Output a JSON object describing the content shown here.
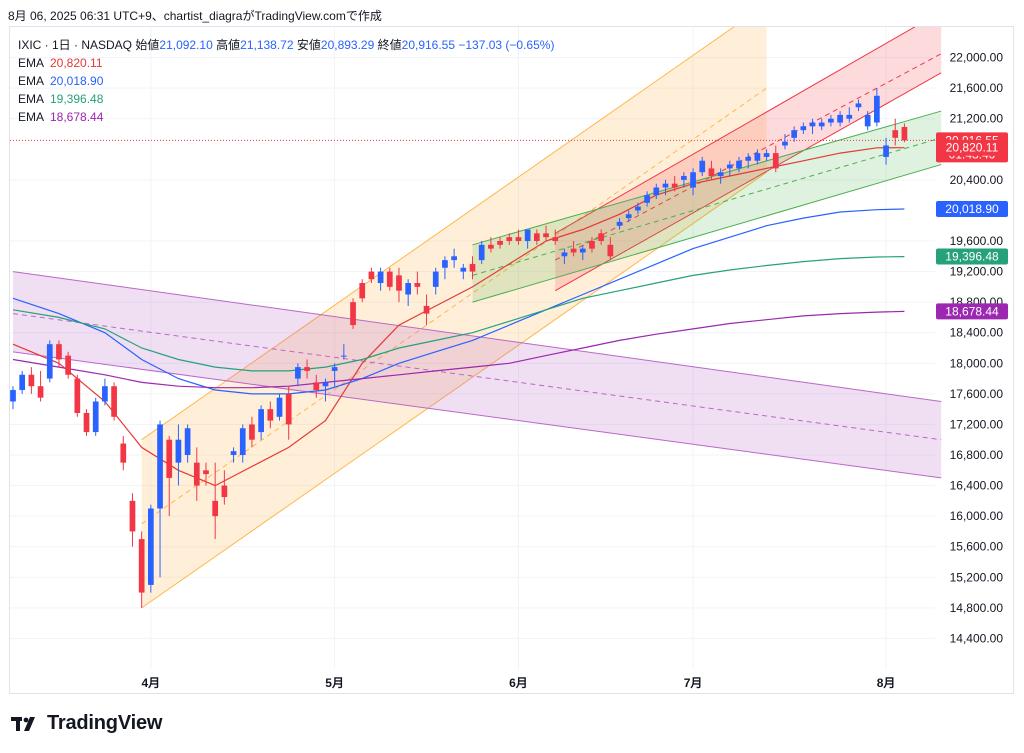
{
  "header": {
    "caption": "8月 06, 2025 06:31 UTC+9、chartist_diagraがTradingView.comで作成"
  },
  "legend": {
    "symbol": "IXIC · 1日 · NASDAQ",
    "open_label": "始値",
    "open": "21,092.10",
    "high_label": "高値",
    "high": "21,138.72",
    "low_label": "安値",
    "low": "20,893.29",
    "close_label": "終値",
    "close": "20,916.55",
    "change": "−137.03 (−0.65%)",
    "emas": [
      {
        "label": "EMA",
        "value": "20,820.11",
        "color": "#e53935"
      },
      {
        "label": "EMA",
        "value": "20,018.90",
        "color": "#2962ff"
      },
      {
        "label": "EMA",
        "value": "19,396.48",
        "color": "#26a17b"
      },
      {
        "label": "EMA",
        "value": "18,678.44",
        "color": "#9c27b0"
      }
    ]
  },
  "price_tags": [
    {
      "text": "20,916.55",
      "sub": "01:43:40",
      "value": 20916.55,
      "color": "#f23645"
    },
    {
      "text": "20,820.11",
      "value": 20820.11,
      "color": "#f23645"
    },
    {
      "text": "20,018.90",
      "value": 20018.9,
      "color": "#2962ff"
    },
    {
      "text": "19,396.48",
      "value": 19396.48,
      "color": "#26a17b"
    },
    {
      "text": "18,678.44",
      "value": 18678.44,
      "color": "#9c27b0"
    }
  ],
  "footer": {
    "brand": "TradingView"
  },
  "colors": {
    "up": "#2962ff",
    "down": "#f23645"
  },
  "chart_data": {
    "type": "candlestick",
    "ylim": [
      14000,
      22400
    ],
    "y_ticks": [
      14400,
      14800,
      15200,
      15600,
      16000,
      16400,
      16800,
      17200,
      17600,
      18000,
      18400,
      18800,
      19200,
      19600,
      20400,
      21200,
      21600,
      22000
    ],
    "y_tick_labels": [
      "14,400.00",
      "14,800.00",
      "15,200.00",
      "15,600.00",
      "16,000.00",
      "16,400.00",
      "16,800.00",
      "17,200.00",
      "17,600.00",
      "18,000.00",
      "18,400.00",
      "18,800.00",
      "19,200.00",
      "19,600.00",
      "20,400.00",
      "21,200.00",
      "21,600.00",
      "22,000.00"
    ],
    "x_labels": [
      {
        "label": "4月",
        "i": 15
      },
      {
        "label": "5月",
        "i": 35
      },
      {
        "label": "6月",
        "i": 55
      },
      {
        "label": "7月",
        "i": 74
      },
      {
        "label": "8月",
        "i": 95
      }
    ],
    "n_bars": 101,
    "candles": [
      [
        0,
        17500,
        17700,
        17400,
        17650
      ],
      [
        1,
        17650,
        17900,
        17600,
        17850
      ],
      [
        2,
        17850,
        17950,
        17600,
        17700
      ],
      [
        3,
        17700,
        17900,
        17500,
        17550
      ],
      [
        4,
        17800,
        18300,
        17750,
        18250
      ],
      [
        5,
        18250,
        18300,
        17950,
        18050
      ],
      [
        6,
        18100,
        18150,
        17800,
        17850
      ],
      [
        7,
        17800,
        17850,
        17300,
        17350
      ],
      [
        8,
        17350,
        17400,
        17050,
        17100
      ],
      [
        9,
        17100,
        17550,
        17050,
        17500
      ],
      [
        10,
        17500,
        17800,
        17450,
        17700
      ],
      [
        11,
        17700,
        17750,
        17250,
        17300
      ],
      [
        12,
        16950,
        17050,
        16600,
        16700
      ],
      [
        13,
        16200,
        16300,
        15600,
        15800
      ],
      [
        14,
        15700,
        15800,
        14800,
        15000
      ],
      [
        15,
        15100,
        16150,
        15000,
        16100
      ],
      [
        16,
        16100,
        17250,
        15200,
        17200
      ],
      [
        17,
        17000,
        17050,
        16000,
        16500
      ],
      [
        18,
        16700,
        17200,
        16400,
        17000
      ],
      [
        19,
        16800,
        17200,
        16700,
        17150
      ],
      [
        20,
        16700,
        16900,
        16200,
        16400
      ],
      [
        21,
        16600,
        16700,
        16400,
        16550
      ],
      [
        22,
        16200,
        16700,
        15700,
        16000
      ],
      [
        23,
        16400,
        16600,
        16150,
        16250
      ],
      [
        24,
        16800,
        16900,
        16700,
        16850
      ],
      [
        25,
        16800,
        17200,
        16700,
        17150
      ],
      [
        26,
        17200,
        17300,
        16900,
        17000
      ],
      [
        27,
        17100,
        17450,
        17000,
        17400
      ],
      [
        28,
        17400,
        17500,
        17150,
        17250
      ],
      [
        29,
        17300,
        17600,
        17250,
        17550
      ],
      [
        30,
        17600,
        17700,
        17000,
        17200
      ],
      [
        31,
        17800,
        18000,
        17700,
        17950
      ],
      [
        32,
        17950,
        18050,
        17800,
        17900
      ],
      [
        33,
        17750,
        17850,
        17550,
        17650
      ],
      [
        34,
        17700,
        17800,
        17500,
        17750
      ],
      [
        35,
        17900,
        18000,
        17700,
        17950
      ],
      [
        36,
        18100,
        18250,
        18050,
        18100
      ],
      [
        37,
        18800,
        18850,
        18450,
        18500
      ],
      [
        38,
        19050,
        19100,
        18800,
        18850
      ],
      [
        39,
        19200,
        19250,
        19050,
        19100
      ],
      [
        40,
        19050,
        19250,
        18950,
        19200
      ],
      [
        41,
        19200,
        19250,
        18950,
        19000
      ],
      [
        42,
        19150,
        19250,
        18800,
        18950
      ],
      [
        43,
        18900,
        19100,
        18750,
        19050
      ],
      [
        44,
        19050,
        19200,
        18900,
        19000
      ],
      [
        45,
        18750,
        18900,
        18500,
        18650
      ],
      [
        46,
        19000,
        19250,
        18900,
        19200
      ],
      [
        47,
        19250,
        19400,
        19100,
        19350
      ],
      [
        48,
        19350,
        19500,
        19250,
        19400
      ],
      [
        49,
        19200,
        19300,
        19100,
        19250
      ],
      [
        50,
        19300,
        19400,
        19100,
        19200
      ],
      [
        51,
        19350,
        19600,
        19300,
        19550
      ],
      [
        52,
        19550,
        19650,
        19450,
        19500
      ],
      [
        53,
        19600,
        19650,
        19500,
        19550
      ],
      [
        54,
        19650,
        19700,
        19550,
        19600
      ],
      [
        55,
        19650,
        19750,
        19550,
        19600
      ],
      [
        56,
        19600,
        19700,
        19500,
        19750
      ],
      [
        57,
        19700,
        19750,
        19550,
        19600
      ],
      [
        58,
        19700,
        19800,
        19600,
        19650
      ],
      [
        59,
        19650,
        19750,
        19550,
        19600
      ],
      [
        60,
        19400,
        19500,
        19300,
        19450
      ],
      [
        61,
        19500,
        19600,
        19400,
        19450
      ],
      [
        62,
        19450,
        19550,
        19350,
        19500
      ],
      [
        63,
        19600,
        19650,
        19450,
        19500
      ],
      [
        64,
        19700,
        19750,
        19550,
        19600
      ],
      [
        65,
        19550,
        19650,
        19350,
        19400
      ],
      [
        66,
        19800,
        19900,
        19750,
        19850
      ],
      [
        67,
        19900,
        20000,
        19850,
        19950
      ],
      [
        68,
        20000,
        20100,
        19950,
        20050
      ],
      [
        69,
        20100,
        20250,
        20050,
        20200
      ],
      [
        70,
        20200,
        20350,
        20150,
        20300
      ],
      [
        71,
        20300,
        20400,
        20200,
        20350
      ],
      [
        72,
        20350,
        20450,
        20250,
        20300
      ],
      [
        73,
        20400,
        20500,
        20300,
        20450
      ],
      [
        74,
        20300,
        20550,
        20200,
        20500
      ],
      [
        75,
        20500,
        20700,
        20450,
        20650
      ],
      [
        76,
        20550,
        20650,
        20400,
        20450
      ],
      [
        77,
        20450,
        20550,
        20350,
        20500
      ],
      [
        78,
        20550,
        20650,
        20450,
        20600
      ],
      [
        79,
        20550,
        20700,
        20500,
        20650
      ],
      [
        80,
        20650,
        20750,
        20550,
        20700
      ],
      [
        81,
        20650,
        20800,
        20600,
        20750
      ],
      [
        82,
        20700,
        20800,
        20650,
        20750
      ],
      [
        83,
        20750,
        20850,
        20500,
        20550
      ],
      [
        84,
        20850,
        21000,
        20800,
        20900
      ],
      [
        85,
        20950,
        21100,
        20900,
        21050
      ],
      [
        86,
        21050,
        21150,
        21000,
        21100
      ],
      [
        87,
        21100,
        21200,
        21000,
        21150
      ],
      [
        88,
        21100,
        21200,
        21050,
        21150
      ],
      [
        89,
        21150,
        21250,
        21100,
        21200
      ],
      [
        90,
        21150,
        21300,
        21100,
        21250
      ],
      [
        91,
        21200,
        21350,
        21150,
        21250
      ],
      [
        92,
        21350,
        21450,
        21300,
        21400
      ],
      [
        93,
        21100,
        21300,
        21050,
        21250
      ],
      [
        94,
        21150,
        21600,
        21100,
        21500
      ],
      [
        95,
        20700,
        20950,
        20600,
        20850
      ],
      [
        96,
        21050,
        21200,
        20850,
        20950
      ],
      [
        97,
        21092.1,
        21138.72,
        20893.29,
        20916.55
      ]
    ],
    "ema_series": [
      {
        "name": "EMA",
        "color": "#e53935",
        "points": [
          [
            0,
            18250
          ],
          [
            5,
            18000
          ],
          [
            10,
            17500
          ],
          [
            14,
            16900
          ],
          [
            18,
            16600
          ],
          [
            22,
            16400
          ],
          [
            26,
            16650
          ],
          [
            30,
            16900
          ],
          [
            34,
            17250
          ],
          [
            38,
            18000
          ],
          [
            42,
            18500
          ],
          [
            46,
            18750
          ],
          [
            50,
            19000
          ],
          [
            54,
            19300
          ],
          [
            58,
            19600
          ],
          [
            62,
            19750
          ],
          [
            66,
            19950
          ],
          [
            70,
            20200
          ],
          [
            74,
            20350
          ],
          [
            78,
            20450
          ],
          [
            82,
            20550
          ],
          [
            86,
            20650
          ],
          [
            90,
            20750
          ],
          [
            94,
            20820
          ],
          [
            97,
            20820.11
          ]
        ]
      },
      {
        "name": "EMA",
        "color": "#2962ff",
        "points": [
          [
            0,
            18850
          ],
          [
            5,
            18650
          ],
          [
            10,
            18400
          ],
          [
            14,
            18050
          ],
          [
            18,
            17800
          ],
          [
            22,
            17650
          ],
          [
            26,
            17600
          ],
          [
            30,
            17600
          ],
          [
            34,
            17650
          ],
          [
            38,
            17800
          ],
          [
            42,
            18000
          ],
          [
            46,
            18150
          ],
          [
            50,
            18300
          ],
          [
            54,
            18500
          ],
          [
            58,
            18700
          ],
          [
            62,
            18900
          ],
          [
            66,
            19100
          ],
          [
            70,
            19300
          ],
          [
            74,
            19500
          ],
          [
            78,
            19650
          ],
          [
            82,
            19800
          ],
          [
            86,
            19900
          ],
          [
            90,
            19980
          ],
          [
            94,
            20010
          ],
          [
            97,
            20018.9
          ]
        ]
      },
      {
        "name": "EMA",
        "color": "#26a17b",
        "points": [
          [
            0,
            18700
          ],
          [
            5,
            18600
          ],
          [
            10,
            18450
          ],
          [
            14,
            18200
          ],
          [
            18,
            18050
          ],
          [
            22,
            17950
          ],
          [
            26,
            17900
          ],
          [
            30,
            17900
          ],
          [
            34,
            17950
          ],
          [
            38,
            18050
          ],
          [
            42,
            18200
          ],
          [
            46,
            18300
          ],
          [
            50,
            18400
          ],
          [
            54,
            18550
          ],
          [
            58,
            18700
          ],
          [
            62,
            18850
          ],
          [
            66,
            18950
          ],
          [
            70,
            19050
          ],
          [
            74,
            19150
          ],
          [
            78,
            19220
          ],
          [
            82,
            19280
          ],
          [
            86,
            19330
          ],
          [
            90,
            19370
          ],
          [
            94,
            19390
          ],
          [
            97,
            19396.48
          ]
        ]
      },
      {
        "name": "EMA",
        "color": "#9c27b0",
        "points": [
          [
            0,
            18050
          ],
          [
            5,
            17950
          ],
          [
            10,
            17850
          ],
          [
            14,
            17750
          ],
          [
            18,
            17700
          ],
          [
            22,
            17680
          ],
          [
            26,
            17680
          ],
          [
            30,
            17700
          ],
          [
            34,
            17750
          ],
          [
            38,
            17800
          ],
          [
            42,
            17850
          ],
          [
            46,
            17900
          ],
          [
            50,
            17950
          ],
          [
            54,
            18000
          ],
          [
            58,
            18100
          ],
          [
            62,
            18200
          ],
          [
            66,
            18300
          ],
          [
            70,
            18380
          ],
          [
            74,
            18450
          ],
          [
            78,
            18520
          ],
          [
            82,
            18570
          ],
          [
            86,
            18620
          ],
          [
            90,
            18650
          ],
          [
            94,
            18670
          ],
          [
            97,
            18678.44
          ]
        ]
      }
    ],
    "channels": [
      {
        "name": "channel-orange",
        "fill": "rgba(255,183,77,0.22)",
        "stroke": "#ffb74d",
        "upper": [
          [
            14,
            17000
          ],
          [
            82,
            22700
          ]
        ],
        "lower": [
          [
            14,
            14800
          ],
          [
            82,
            20500
          ]
        ],
        "mid": [
          [
            14,
            15900
          ],
          [
            82,
            21600
          ]
        ]
      },
      {
        "name": "channel-purple",
        "fill": "rgba(186,104,200,0.22)",
        "stroke": "#ba68c8",
        "upper": [
          [
            0,
            19200
          ],
          [
            101,
            17500
          ]
        ],
        "lower": [
          [
            0,
            18150
          ],
          [
            101,
            16500
          ]
        ],
        "mid": [
          [
            0,
            18650
          ],
          [
            101,
            17000
          ]
        ]
      },
      {
        "name": "channel-red",
        "fill": "rgba(242,54,69,0.18)",
        "stroke": "#f23645",
        "upper": [
          [
            59,
            19700
          ],
          [
            101,
            22600
          ]
        ],
        "lower": [
          [
            59,
            18950
          ],
          [
            101,
            21800
          ]
        ],
        "mid": [
          [
            59,
            19350
          ],
          [
            101,
            22050
          ]
        ]
      },
      {
        "name": "channel-green",
        "fill": "rgba(76,175,80,0.18)",
        "stroke": "#4caf50",
        "upper": [
          [
            50,
            19550
          ],
          [
            101,
            21300
          ]
        ],
        "lower": [
          [
            50,
            18800
          ],
          [
            101,
            20600
          ]
        ],
        "mid": [
          [
            50,
            19150
          ],
          [
            101,
            20950
          ]
        ]
      }
    ],
    "last_price_line": 20916.55
  }
}
